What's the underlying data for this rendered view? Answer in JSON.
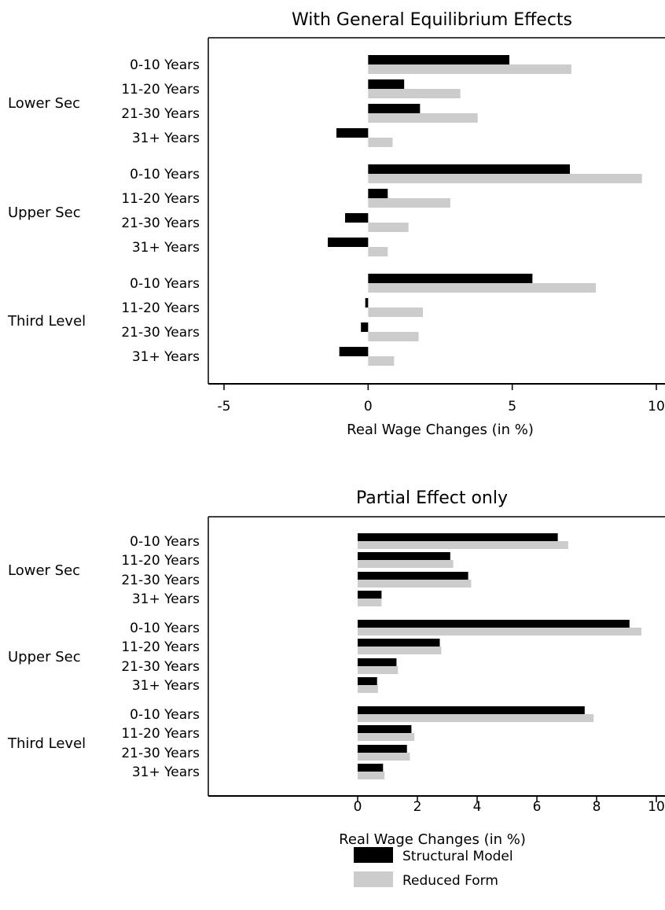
{
  "colors": {
    "structural": "#000000",
    "reduced": "#cccccc",
    "axis": "#000000"
  },
  "legend": {
    "items": [
      {
        "label": "Structural Model",
        "color": "#000000"
      },
      {
        "label": "Reduced Form",
        "color": "#cccccc"
      }
    ]
  },
  "chart_data": [
    {
      "type": "bar",
      "orientation": "horizontal",
      "title": "With General Equilibrium Effects",
      "xlabel": "Real Wage Changes (in %)",
      "xlim": [
        -5,
        10
      ],
      "xticks": [
        -5,
        0,
        5,
        10
      ],
      "groups": [
        {
          "name": "Lower Sec",
          "categories": [
            "0-10 Years",
            "11-20 Years",
            "21-30 Years",
            "31+ Years"
          ]
        },
        {
          "name": "Upper Sec",
          "categories": [
            "0-10 Years",
            "11-20 Years",
            "21-30 Years",
            "31+ Years"
          ]
        },
        {
          "name": "Third Level",
          "categories": [
            "0-10 Years",
            "11-20 Years",
            "21-30 Years",
            "31+ Years"
          ]
        }
      ],
      "series": [
        {
          "name": "Structural Model",
          "values": [
            4.9,
            1.25,
            1.8,
            -1.1,
            7.0,
            0.68,
            -0.8,
            -1.4,
            5.7,
            -0.1,
            -0.25,
            -1.0
          ]
        },
        {
          "name": "Reduced Form",
          "values": [
            7.05,
            3.2,
            3.8,
            0.85,
            9.5,
            2.85,
            1.4,
            0.68,
            7.9,
            1.9,
            1.75,
            0.9
          ]
        }
      ]
    },
    {
      "type": "bar",
      "orientation": "horizontal",
      "title": "Partial Effect only",
      "xlabel": "Real Wage Changes (in %)",
      "xlim": [
        -5,
        10
      ],
      "xticks": [
        0,
        2,
        4,
        6,
        8,
        10
      ],
      "groups": [
        {
          "name": "Lower Sec",
          "categories": [
            "0-10 Years",
            "11-20 Years",
            "21-30 Years",
            "31+ Years"
          ]
        },
        {
          "name": "Upper Sec",
          "categories": [
            "0-10 Years",
            "11-20 Years",
            "21-30 Years",
            "31+ Years"
          ]
        },
        {
          "name": "Third Level",
          "categories": [
            "0-10 Years",
            "11-20 Years",
            "21-30 Years",
            "31+ Years"
          ]
        }
      ],
      "series": [
        {
          "name": "Structural Model",
          "values": [
            6.7,
            3.1,
            3.7,
            0.8,
            9.1,
            2.75,
            1.3,
            0.65,
            7.6,
            1.8,
            1.65,
            0.85
          ]
        },
        {
          "name": "Reduced Form",
          "values": [
            7.05,
            3.2,
            3.8,
            0.8,
            9.5,
            2.8,
            1.35,
            0.68,
            7.9,
            1.9,
            1.75,
            0.9
          ]
        }
      ]
    }
  ]
}
